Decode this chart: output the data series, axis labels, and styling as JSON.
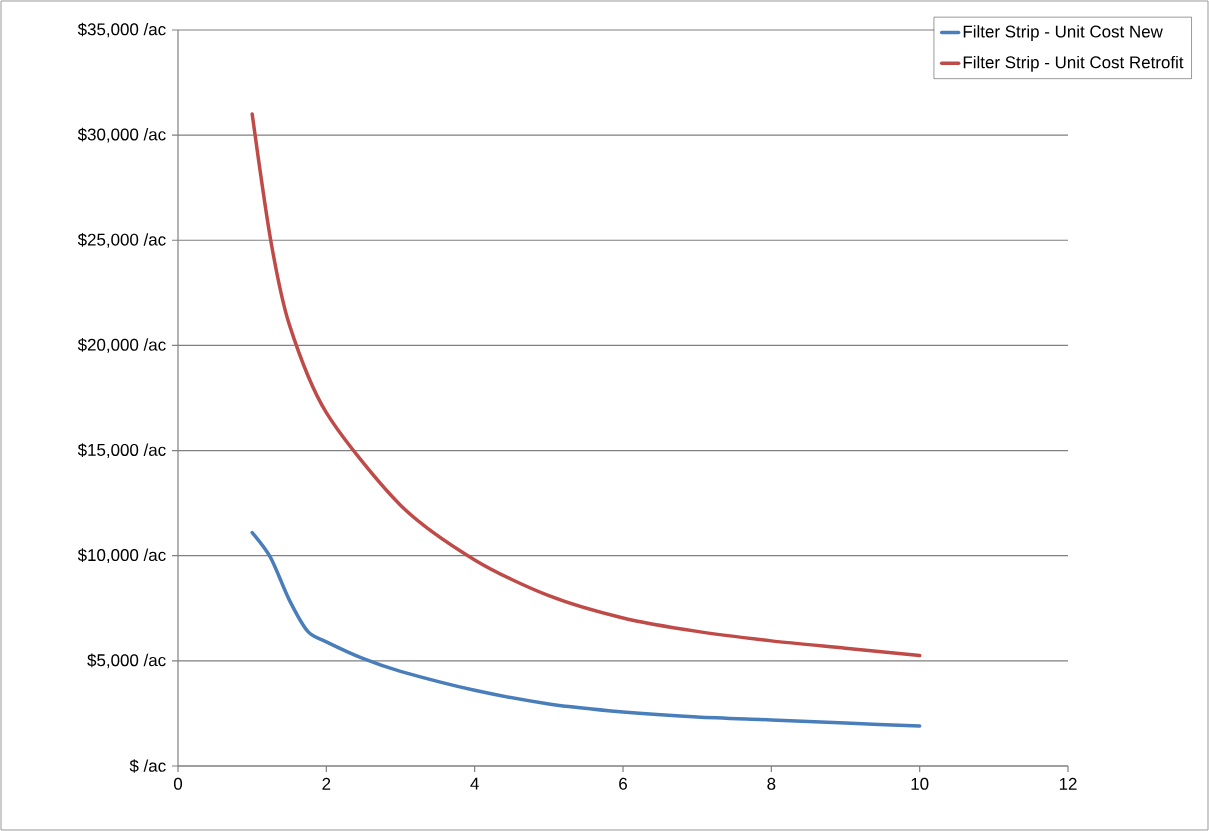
{
  "chart_data": {
    "type": "line",
    "series": [
      {
        "name": "Filter Strip - Unit Cost New",
        "color": "#4a7ebb",
        "x": [
          1,
          1.25,
          1.5,
          1.75,
          2,
          2.5,
          3,
          4,
          5,
          6,
          7,
          8,
          9,
          10
        ],
        "values": [
          11100,
          9900,
          7900,
          6400,
          5900,
          5100,
          4500,
          3600,
          2950,
          2570,
          2330,
          2190,
          2040,
          1900
        ]
      },
      {
        "name": "Filter Strip - Unit Cost Retrofit",
        "color": "#be4b48",
        "x": [
          1,
          1.25,
          1.5,
          2,
          3,
          4,
          5,
          6,
          7,
          8,
          9,
          10
        ],
        "values": [
          31000,
          25000,
          21000,
          16800,
          12400,
          9800,
          8100,
          7040,
          6400,
          5950,
          5600,
          5250
        ]
      }
    ],
    "xlim": [
      0,
      12
    ],
    "xticks": [
      0,
      2,
      4,
      6,
      8,
      10,
      12
    ],
    "ylim": [
      0,
      35000
    ],
    "yticks": [
      {
        "value": 0,
        "label": "$ /ac"
      },
      {
        "value": 5000,
        "label": "$5,000 /ac"
      },
      {
        "value": 10000,
        "label": "$10,000 /ac"
      },
      {
        "value": 15000,
        "label": "$15,000 /ac"
      },
      {
        "value": 20000,
        "label": "$20,000 /ac"
      },
      {
        "value": 25000,
        "label": "$25,000 /ac"
      },
      {
        "value": 30000,
        "label": "$30,000 /ac"
      },
      {
        "value": 35000,
        "label": "$35,000 /ac"
      }
    ],
    "grid": "y",
    "legend": "top right",
    "marker": "none",
    "line_style": "solid"
  }
}
